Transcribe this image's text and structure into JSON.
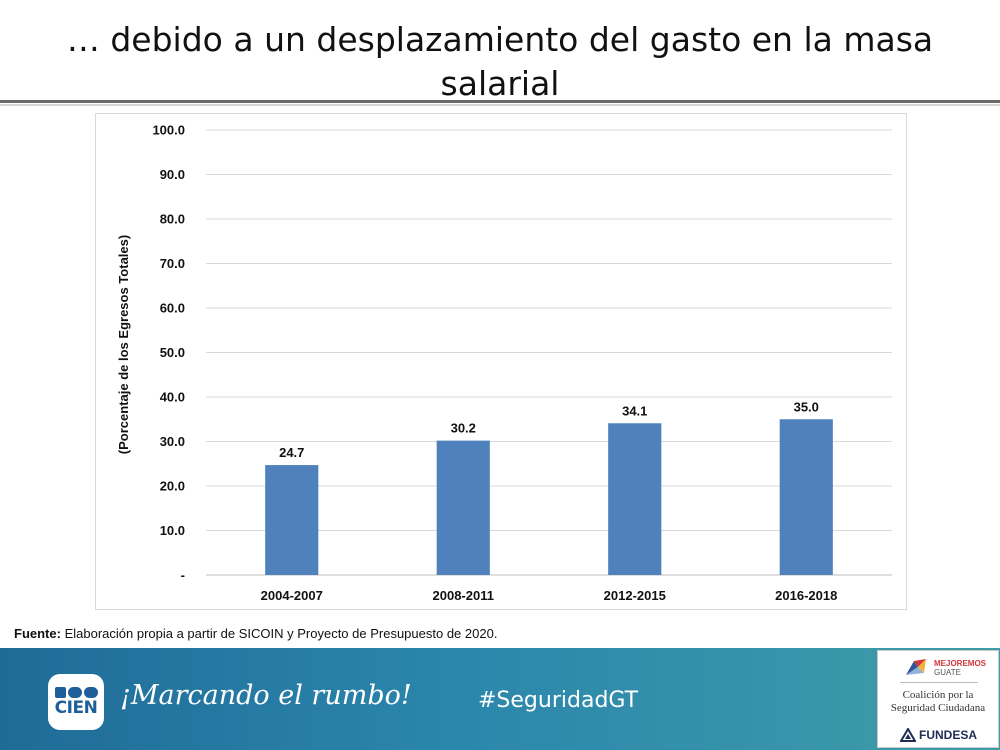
{
  "slide": {
    "title_line1": "… debido a un desplazamiento del gasto en la masa",
    "title_line2": "salarial"
  },
  "chart_data": {
    "type": "bar",
    "title": "",
    "categories": [
      "2004-2007",
      "2008-2011",
      "2012-2015",
      "2016-2018"
    ],
    "values": [
      24.7,
      30.2,
      34.1,
      35.0
    ],
    "value_labels": [
      "24.7",
      "30.2",
      "34.1",
      "35.0"
    ],
    "ylabel": "(Porcentaje de los Egresos Totales)",
    "xlabel": "",
    "ylim": [
      0,
      100
    ],
    "yticks": [
      0,
      10,
      20,
      30,
      40,
      50,
      60,
      70,
      80,
      90,
      100
    ],
    "ytick_labels": [
      "-",
      "10.0",
      "20.0",
      "30.0",
      "40.0",
      "50.0",
      "60.0",
      "70.0",
      "80.0",
      "90.0",
      "100.0"
    ],
    "grid": true,
    "bar_color": "#4f81bd",
    "grid_color": "#d9d9d9"
  },
  "source": {
    "label": "Fuente:",
    "text": " Elaboración propia a partir de SICOIN y Proyecto de Presupuesto de 2020."
  },
  "footer": {
    "logo_text": "CIEN",
    "tagline": "¡Marcando el rumbo!",
    "hashtag": "#SeguridadGT",
    "partner_top": "MEJOREMOS",
    "partner_top_sub": "GUATE",
    "partner_mid_line1": "Coalición por la",
    "partner_mid_line2": "Seguridad Ciudadana",
    "partner_bottom": "FUNDESA",
    "band_color_start": "#1f6b97",
    "band_color_end": "#3f9da8"
  }
}
